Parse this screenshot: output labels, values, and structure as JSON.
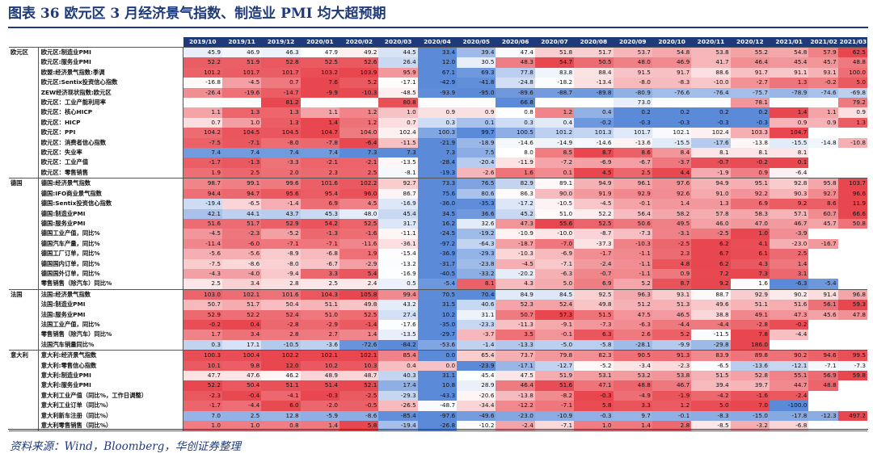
{
  "title": "图表 36    欧元区 3 月经济景气指数、制造业 PMI 均大超预期",
  "source": "资料来源：Wind，Bloomberg，华创证券整理",
  "colors": {
    "header_bg": "#1f3a7a",
    "blue_scale": "#5b8ad8",
    "red_scale": "#e8474f"
  },
  "months": [
    "2019/10",
    "2019/11",
    "2019/12",
    "2020/01",
    "2020/02",
    "2020/03",
    "2020/04",
    "2020/05",
    "2020/06",
    "2020/07",
    "2020/08",
    "2020/09",
    "2020/10",
    "2020/11",
    "2020/12",
    "2021/01",
    "2021/02",
    "2021/03"
  ],
  "groups": [
    {
      "name": "欧元区",
      "rows": [
        {
          "label": "欧元区:制造业PMI",
          "values": [
            "45.9",
            "46.9",
            "46.3",
            "47.9",
            "49.2",
            "44.5",
            "33.4",
            "39.4",
            "47.4",
            "51.8",
            "51.7",
            "53.7",
            "54.8",
            "53.8",
            "55.2",
            "54.8",
            "57.9",
            "62.5"
          ]
        },
        {
          "label": "欧元区:服务业PMI",
          "values": [
            "52.2",
            "51.9",
            "52.8",
            "52.5",
            "52.6",
            "26.4",
            "12.0",
            "30.5",
            "48.3",
            "54.7",
            "50.5",
            "48.0",
            "46.9",
            "41.7",
            "46.4",
            "45.4",
            "45.7",
            "48.8"
          ]
        },
        {
          "label": "欧盟:经济景气指数:季调",
          "values": [
            "101.2",
            "101.7",
            "101.7",
            "103.2",
            "103.9",
            "95.9",
            "67.1",
            "69.3",
            "77.8",
            "83.8",
            "88.4",
            "91.5",
            "91.7",
            "88.6",
            "91.7",
            "91.1",
            "93.1",
            "100.0"
          ]
        },
        {
          "label": "欧元区:Sentix投资信心指数",
          "values": [
            "-16.8",
            "-4.5",
            "0.7",
            "7.6",
            "5.2",
            "-17.1",
            "-42.9",
            "-41.8",
            "-24.8",
            "-18.2",
            "-13.4",
            "-8.0",
            "-8.3",
            "-10.0",
            "-2.7",
            "1.3",
            "-0.2",
            "5.0"
          ]
        },
        {
          "label": "ZEW经济现状指数:欧元区",
          "values": [
            "-26.4",
            "-19.6",
            "-14.7",
            "-9.9",
            "-10.3",
            "-48.5",
            "-93.9",
            "-95.0",
            "-89.6",
            "-88.7",
            "-89.8",
            "-80.9",
            "-76.6",
            "-76.4",
            "-75.7",
            "-78.9",
            "-74.6",
            "-69.8"
          ]
        },
        {
          "label": "欧元区：工业产能利用率",
          "values": [
            "",
            "",
            "81.2",
            "",
            "",
            "80.8",
            "",
            "",
            "66.8",
            "",
            "",
            "73.0",
            "",
            "",
            "78.1",
            "",
            "",
            "79.2"
          ]
        },
        {
          "label": "欧元区：核心HICP",
          "values": [
            "1.1",
            "1.3",
            "1.3",
            "1.1",
            "1.2",
            "1.0",
            "0.9",
            "0.9",
            "0.8",
            "1.2",
            "0.4",
            "0.2",
            "0.2",
            "0.2",
            "0.2",
            "1.4",
            "1.1",
            "0.9"
          ]
        },
        {
          "label": "欧元区：HICP",
          "values": [
            "0.7",
            "1.0",
            "1.3",
            "1.4",
            "1.2",
            "0.7",
            "0.3",
            "0.1",
            "0.3",
            "0.4",
            "-0.2",
            "-0.3",
            "-0.3",
            "-0.3",
            "-0.3",
            "0.9",
            "0.9",
            "1.3"
          ]
        },
        {
          "label": "欧元区：PPI",
          "values": [
            "104.2",
            "104.5",
            "104.5",
            "104.7",
            "104.0",
            "102.4",
            "100.3",
            "99.7",
            "100.5",
            "101.2",
            "101.3",
            "101.7",
            "102.1",
            "102.4",
            "103.3",
            "104.7",
            "",
            ""
          ]
        },
        {
          "label": "欧元区：消费者信心指数",
          "values": [
            "-7.5",
            "-7.1",
            "-8.0",
            "-7.8",
            "-6.4",
            "-11.5",
            "-21.9",
            "-18.9",
            "-14.6",
            "-14.9",
            "-14.6",
            "-13.6",
            "-15.5",
            "-17.6",
            "-13.8",
            "-15.5",
            "-14.8",
            "-10.8"
          ]
        },
        {
          "label": "欧元区：失业率",
          "values": [
            "7.4",
            "7.4",
            "7.4",
            "7.4",
            "7.3",
            "7.3",
            "7.3",
            "7.5",
            "8.0",
            "8.5",
            "8.7",
            "8.6",
            "8.4",
            "8.1",
            "8.1",
            "8.1",
            "",
            ""
          ]
        },
        {
          "label": "欧元区：工业产值",
          "values": [
            "-1.7",
            "-1.3",
            "-3.3",
            "-2.1",
            "-2.1",
            "-13.5",
            "-28.4",
            "-20.4",
            "-11.9",
            "-7.2",
            "-6.9",
            "-6.7",
            "-3.7",
            "-0.7",
            "-0.2",
            "0.1",
            "",
            ""
          ]
        },
        {
          "label": "欧元区：零售销售",
          "values": [
            "1.9",
            "2.5",
            "2.0",
            "2.3",
            "2.5",
            "-8.1",
            "-19.3",
            "-2.6",
            "1.6",
            "0.1",
            "4.5",
            "2.5",
            "4.4",
            "-1.9",
            "0.9",
            "-6.4",
            "",
            ""
          ]
        }
      ]
    },
    {
      "name": "德国",
      "rows": [
        {
          "label": "德国:经济景气指数",
          "values": [
            "98.7",
            "99.1",
            "99.6",
            "101.6",
            "102.2",
            "92.7",
            "73.3",
            "76.5",
            "82.9",
            "89.1",
            "94.9",
            "96.1",
            "97.6",
            "94.9",
            "95.1",
            "92.8",
            "95.8",
            "103.7"
          ]
        },
        {
          "label": "德国:IFO商业景气指数",
          "values": [
            "94.4",
            "94.7",
            "95.6",
            "95.4",
            "96.0",
            "86.7",
            "75.6",
            "80.6",
            "86.3",
            "90.0",
            "91.9",
            "92.9",
            "92.6",
            "91.0",
            "92.2",
            "90.3",
            "92.7",
            "96.6"
          ]
        },
        {
          "label": "德国:Sentix投资信心指数",
          "values": [
            "-19.4",
            "-6.5",
            "-1.4",
            "6.9",
            "4.5",
            "-16.9",
            "-36.0",
            "-35.3",
            "-17.2",
            "-10.5",
            "-4.5",
            "-0.1",
            "1.4",
            "1.3",
            "6.9",
            "9.2",
            "8.6",
            "11.9"
          ]
        },
        {
          "label": "德国:制造业PMI",
          "values": [
            "42.1",
            "44.1",
            "43.7",
            "45.3",
            "48.0",
            "45.4",
            "34.5",
            "36.6",
            "45.2",
            "51.0",
            "52.2",
            "56.4",
            "58.2",
            "57.8",
            "58.3",
            "57.1",
            "60.7",
            "66.6"
          ]
        },
        {
          "label": "德国:服务业PMI",
          "values": [
            "51.6",
            "51.7",
            "52.9",
            "54.2",
            "52.5",
            "31.7",
            "16.2",
            "32.6",
            "47.3",
            "55.6",
            "52.5",
            "50.6",
            "49.5",
            "46.0",
            "47.0",
            "46.7",
            "45.7",
            "50.8"
          ]
        },
        {
          "label": "德国工业产值，同比%",
          "values": [
            "-4.5",
            "-2.3",
            "-5.2",
            "-1.3",
            "-1.6",
            "-11.1",
            "-24.5",
            "-19.2",
            "-10.9",
            "-10.0",
            "-8.7",
            "-7.3",
            "-3.1",
            "-2.5",
            "1.0",
            "-3.9",
            "",
            ""
          ]
        },
        {
          "label": "德国汽车产量，同比%",
          "values": [
            "-11.4",
            "-6.0",
            "-7.1",
            "-7.1",
            "-11.6",
            "-36.1",
            "-97.2",
            "-64.3",
            "-18.7",
            "-7.0",
            "-37.3",
            "-10.3",
            "-2.5",
            "6.2",
            "4.1",
            "-23.0",
            "-16.7",
            ""
          ]
        },
        {
          "label": "德国工厂订单，同比%",
          "values": [
            "-5.6",
            "-5.6",
            "-8.9",
            "-6.8",
            "1.9",
            "-15.4",
            "-36.9",
            "-29.3",
            "-10.3",
            "-6.9",
            "-1.7",
            "-1.1",
            "2.3",
            "6.7",
            "6.1",
            "2.5",
            "",
            ""
          ]
        },
        {
          "label": "德国国内订单，同比%",
          "values": [
            "-7.5",
            "-8.6",
            "-8.0",
            "-6.7",
            "-2.9",
            "-13.2",
            "-31.7",
            "-23.8",
            "-4.5",
            "-7.1",
            "-2.4",
            "-1.1",
            "4.8",
            "6.2",
            "4.3",
            "1.4",
            "",
            ""
          ]
        },
        {
          "label": "德国国外订单，同比%",
          "values": [
            "-4.3",
            "-4.0",
            "-9.4",
            "3.3",
            "5.4",
            "-16.9",
            "-40.5",
            "-33.2",
            "-20.2",
            "-6.3",
            "-0.7",
            "-1.1",
            "0.9",
            "7.2",
            "7.3",
            "3.1",
            "",
            ""
          ]
        },
        {
          "label": "零售销售（除汽车）同比%",
          "values": [
            "2.5",
            "3.4",
            "2.8",
            "2.5",
            "2.4",
            "0.5",
            "-5.4",
            "8.1",
            "4.3",
            "5.0",
            "6.9",
            "5.2",
            "8.7",
            "9.2",
            "1.6",
            "-6.3",
            "-5.4",
            ""
          ]
        }
      ]
    },
    {
      "name": "法国",
      "rows": [
        {
          "label": "法国:经济景气指数",
          "values": [
            "103.0",
            "102.1",
            "101.6",
            "104.3",
            "105.8",
            "99.4",
            "70.5",
            "70.4",
            "84.9",
            "84.5",
            "92.5",
            "96.3",
            "93.1",
            "88.7",
            "92.9",
            "90.2",
            "91.4",
            "96.8"
          ]
        },
        {
          "label": "法国:制造业PMI",
          "values": [
            "50.7",
            "51.7",
            "50.4",
            "51.1",
            "49.8",
            "43.2",
            "31.5",
            "40.6",
            "52.3",
            "52.4",
            "49.8",
            "51.2",
            "51.3",
            "49.6",
            "51.1",
            "51.6",
            "56.1",
            "59.3"
          ]
        },
        {
          "label": "法国:服务业PMI",
          "values": [
            "52.9",
            "52.2",
            "52.4",
            "51.0",
            "52.5",
            "27.4",
            "10.2",
            "31.1",
            "50.7",
            "57.3",
            "51.5",
            "47.5",
            "46.5",
            "38.8",
            "49.1",
            "47.3",
            "45.6",
            "47.8"
          ]
        },
        {
          "label": "法国工业产值，同比%",
          "values": [
            "-0.2",
            "0.4",
            "-2.8",
            "-2.9",
            "-1.4",
            "-17.6",
            "-35.0",
            "-23.3",
            "-11.3",
            "-9.1",
            "-7.3",
            "-6.3",
            "-4.4",
            "-4.4",
            "-2.8",
            "-0.2",
            "",
            ""
          ]
        },
        {
          "label": "零售销售（除汽车）同比%",
          "values": [
            "1.7",
            "3.4",
            "2.8",
            "2.7",
            "1.4",
            "-13.5",
            "-29.7",
            "-3.7",
            "3.5",
            "-0.1",
            "6.3",
            "2.6",
            "5.2",
            "-11.5",
            "7.8",
            "-4.4",
            "",
            ""
          ]
        },
        {
          "label": "法国汽车销量同比%",
          "values": [
            "0.3",
            "17.1",
            "-10.5",
            "-3.6",
            "-72.6",
            "-84.2",
            "-53.6",
            "-1.4",
            "-13.3",
            "-5.0",
            "-5.8",
            "-28.1",
            "-9.9",
            "-29.8",
            "186.0",
            "",
            "",
            ""
          ]
        }
      ]
    },
    {
      "name": "意大利",
      "rows": [
        {
          "label": "意大利:经济景气指数",
          "values": [
            "100.3",
            "100.4",
            "102.2",
            "102.1",
            "102.1",
            "85.4",
            "0.0",
            "65.4",
            "73.7",
            "79.8",
            "82.3",
            "90.5",
            "91.3",
            "83.9",
            "89.8",
            "90.2",
            "94.6",
            "99.5"
          ]
        },
        {
          "label": "意大利:零售信心指数",
          "values": [
            "10.1",
            "9.8",
            "12.0",
            "10.2",
            "10.3",
            "0.4",
            "0.0",
            "-23.9",
            "-17.1",
            "-12.7",
            "-5.2",
            "-3.4",
            "-2.3",
            "-6.5",
            "-13.6",
            "-12.1",
            "-7.1",
            "-7.3"
          ]
        },
        {
          "label": "意大利:制造业PMI",
          "values": [
            "47.7",
            "47.6",
            "46.2",
            "48.9",
            "48.7",
            "40.3",
            "31.1",
            "45.4",
            "47.5",
            "51.9",
            "53.1",
            "53.2",
            "53.8",
            "51.5",
            "52.8",
            "55.1",
            "56.9",
            "59.8"
          ]
        },
        {
          "label": "意大利:服务业PMI",
          "values": [
            "52.2",
            "50.4",
            "51.1",
            "51.4",
            "52.1",
            "17.4",
            "10.8",
            "28.9",
            "46.4",
            "51.6",
            "47.1",
            "48.8",
            "46.7",
            "39.4",
            "39.7",
            "44.7",
            "48.8",
            ""
          ]
        },
        {
          "label": "意大利工业产值（同比%，工作日调整）",
          "values": [
            "-2.3",
            "-0.4",
            "-4.1",
            "-0.3",
            "-2.5",
            "-29.3",
            "-43.3",
            "-20.6",
            "-13.8",
            "-8.2",
            "-0.3",
            "-4.9",
            "-1.9",
            "-4.2",
            "-1.6",
            "-2.4",
            "",
            ""
          ]
        },
        {
          "label": "意大利工业订单（同比%）",
          "values": [
            "-1.7",
            "-4.4",
            "6.0",
            "-2.0",
            "-0.5",
            "-26.5",
            "-48.7",
            "-34.4",
            "-12.2",
            "-7.1",
            "5.8",
            "3.3",
            "1.2",
            "5.0",
            "7.0",
            "-100.0",
            "",
            ""
          ]
        },
        {
          "label": "意大利新车注册（同比%）",
          "values": [
            "7.0",
            "2.5",
            "12.8",
            "-5.9",
            "-8.6",
            "-85.4",
            "-97.6",
            "-49.6",
            "-23.0",
            "-10.9",
            "-0.3",
            "9.7",
            "-0.1",
            "-8.3",
            "-15.0",
            "-17.8",
            "-12.3",
            "497.2"
          ]
        },
        {
          "label": "意大利零售销售（同比%）",
          "values": [
            "1.0",
            "1.0",
            "0.8",
            "1.4",
            "5.8",
            "-19.4",
            "-26.8",
            "-10.2",
            "-2.4",
            "-7.1",
            "1.0",
            "1.4",
            "2.8",
            "-8.5",
            "-3.2",
            "-6.8",
            "",
            ""
          ]
        }
      ]
    }
  ]
}
